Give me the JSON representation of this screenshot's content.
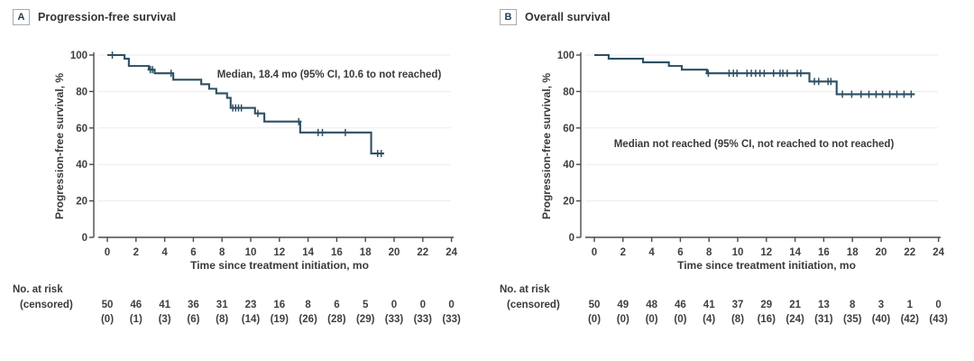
{
  "figure": {
    "background": "#ffffff",
    "curve_color": "#2d4f63",
    "axis_color": "#4a4a4a",
    "grid_color": "#ebebeb",
    "text_color": "#3a3a3a",
    "tick_text_color": "#3f3f3f"
  },
  "chart_data": [
    {
      "type": "line",
      "subtype": "kaplan_meier_step",
      "panel_label": "A",
      "title": "Progression-free survival",
      "annotation": "Median, 18.4 mo (95% CI, 10.6 to not reached)",
      "xlabel": "Time since treatment initiation, mo",
      "ylabel": "Progression-free survival, %",
      "xlim": [
        0,
        24
      ],
      "ylim": [
        0,
        100
      ],
      "xticks": [
        0,
        2,
        4,
        6,
        8,
        10,
        12,
        14,
        16,
        18,
        20,
        22,
        24
      ],
      "yticks": [
        0,
        20,
        40,
        60,
        80,
        100
      ],
      "grid": "horizontal",
      "legend": "none",
      "steps": [
        [
          0,
          100
        ],
        [
          1.2,
          98
        ],
        [
          1.5,
          94
        ],
        [
          2.9,
          92
        ],
        [
          3.3,
          90
        ],
        [
          4.6,
          86.5
        ],
        [
          6.55,
          84
        ],
        [
          7.1,
          81.5
        ],
        [
          7.6,
          79
        ],
        [
          8.35,
          76.5
        ],
        [
          8.6,
          71
        ],
        [
          10.3,
          68
        ],
        [
          10.95,
          63.5
        ],
        [
          13.45,
          57.5
        ],
        [
          18.4,
          46
        ]
      ],
      "curve_end_x": 19.3,
      "censor_marks": [
        [
          0.35,
          100
        ],
        [
          3.0,
          92
        ],
        [
          3.15,
          92
        ],
        [
          4.45,
          90
        ],
        [
          8.75,
          71
        ],
        [
          8.95,
          71
        ],
        [
          9.15,
          71
        ],
        [
          9.35,
          71
        ],
        [
          10.5,
          68
        ],
        [
          13.35,
          63.5
        ],
        [
          14.7,
          57.5
        ],
        [
          15.0,
          57.5
        ],
        [
          16.6,
          57.5
        ],
        [
          18.85,
          46
        ],
        [
          19.1,
          46
        ]
      ],
      "at_risk_table": {
        "row1_label": "No. at risk",
        "row2_label": "(censored)",
        "times": [
          0,
          2,
          4,
          6,
          8,
          10,
          12,
          14,
          16,
          18,
          20,
          22,
          24
        ],
        "at_risk": [
          "50",
          "46",
          "41",
          "36",
          "31",
          "23",
          "16",
          "8",
          "6",
          "5",
          "0",
          "0",
          "0"
        ],
        "censored": [
          "(0)",
          "(1)",
          "(3)",
          "(6)",
          "(8)",
          "(14)",
          "(19)",
          "(26)",
          "(28)",
          "(29)",
          "(33)",
          "(33)",
          "(33)"
        ]
      }
    },
    {
      "type": "line",
      "subtype": "kaplan_meier_step",
      "panel_label": "B",
      "title": "Overall survival",
      "annotation": "Median not reached (95% CI, not reached to not reached)",
      "xlabel": "Time since treatment initiation, mo",
      "ylabel": "Progression-free survival, %",
      "xlim": [
        0,
        24
      ],
      "ylim": [
        0,
        100
      ],
      "xticks": [
        0,
        2,
        4,
        6,
        8,
        10,
        12,
        14,
        16,
        18,
        20,
        22,
        24
      ],
      "yticks": [
        0,
        20,
        40,
        60,
        80,
        100
      ],
      "grid": "horizontal",
      "legend": "none",
      "steps": [
        [
          0,
          100
        ],
        [
          1.0,
          98
        ],
        [
          3.4,
          96
        ],
        [
          5.2,
          94
        ],
        [
          6.1,
          92
        ],
        [
          7.85,
          90
        ],
        [
          15.0,
          85.5
        ],
        [
          16.9,
          78.5
        ]
      ],
      "curve_end_x": 22.35,
      "censor_marks": [
        [
          7.95,
          90
        ],
        [
          9.4,
          90
        ],
        [
          9.7,
          90
        ],
        [
          9.95,
          90
        ],
        [
          10.65,
          90
        ],
        [
          10.95,
          90
        ],
        [
          11.25,
          90
        ],
        [
          11.55,
          90
        ],
        [
          11.85,
          90
        ],
        [
          12.5,
          90
        ],
        [
          12.95,
          90
        ],
        [
          13.15,
          90
        ],
        [
          13.45,
          90
        ],
        [
          14.15,
          90
        ],
        [
          14.4,
          90
        ],
        [
          15.35,
          85.5
        ],
        [
          15.65,
          85.5
        ],
        [
          16.3,
          85.5
        ],
        [
          16.5,
          85.5
        ],
        [
          17.3,
          78.5
        ],
        [
          17.95,
          78.5
        ],
        [
          18.6,
          78.5
        ],
        [
          19.15,
          78.5
        ],
        [
          19.65,
          78.5
        ],
        [
          20.1,
          78.5
        ],
        [
          20.6,
          78.5
        ],
        [
          21.1,
          78.5
        ],
        [
          21.6,
          78.5
        ],
        [
          22.1,
          78.5
        ]
      ],
      "at_risk_table": {
        "row1_label": "No. at risk",
        "row2_label": "(censored)",
        "times": [
          0,
          2,
          4,
          6,
          8,
          10,
          12,
          14,
          16,
          18,
          20,
          22,
          24
        ],
        "at_risk": [
          "50",
          "49",
          "48",
          "46",
          "41",
          "37",
          "29",
          "21",
          "13",
          "8",
          "3",
          "1",
          "0"
        ],
        "censored": [
          "(0)",
          "(0)",
          "(0)",
          "(0)",
          "(4)",
          "(8)",
          "(16)",
          "(24)",
          "(31)",
          "(35)",
          "(40)",
          "(42)",
          "(43)"
        ]
      }
    }
  ]
}
